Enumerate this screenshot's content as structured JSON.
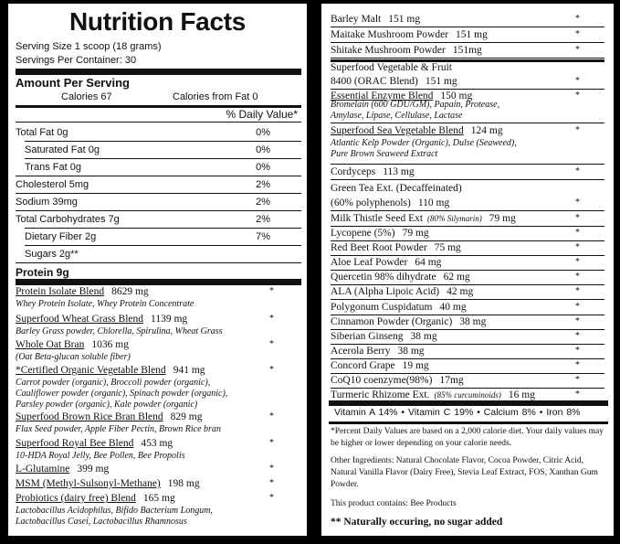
{
  "header": {
    "title": "Nutrition Facts",
    "serving_size": "Serving Size 1 scoop (18 grams)",
    "servings_per_container": "Servings Per Container: 30",
    "amount_per_serving": "Amount Per Serving",
    "calories": "Calories  67",
    "calories_from_fat": "Calories from Fat  0",
    "daily_value_header": "% Daily Value*"
  },
  "nutrients": [
    {
      "name": "Total Fat  0g",
      "pct": "0%"
    },
    {
      "name": "Saturated Fat  0g",
      "pct": "0%"
    },
    {
      "name": "Trans Fat  0g",
      "pct": "0%"
    },
    {
      "name": "Cholesterol  5mg",
      "pct": "2%"
    },
    {
      "name": "Sodium  39mg",
      "pct": "2%"
    },
    {
      "name": "Total Carbohydrates  7g",
      "pct": "2%"
    },
    {
      "name": "Dietary Fiber  2g",
      "pct": "7%"
    },
    {
      "name": "Sugars  2g**",
      "pct": ""
    },
    {
      "name": "Protein  9g",
      "pct": ""
    }
  ],
  "left_blends": [
    {
      "name": "Protein Isolate Blend",
      "amount": "8629 mg",
      "star": "*",
      "desc": [
        "Whey Protein Isolate, Whey Protein Concentrate"
      ]
    },
    {
      "name": "Superfood Wheat Grass Blend",
      "amount": "1139 mg",
      "star": "*",
      "desc": [
        "Barley Grass powder, Chlorella, Spirulina, Wheat Grass"
      ]
    },
    {
      "name": "Whole Oat Bran",
      "amount": "1036 mg",
      "star": "*",
      "desc": [
        "(Oat Beta-glucan soluble fiber)"
      ]
    },
    {
      "name": "*Certified Organic Vegetable Blend",
      "amount": "941 mg",
      "star": "*",
      "desc": [
        "Carrot powder (organic), Broccoli powder (organic),",
        "Cauliflower powder (organic), Spinach powder (organic),",
        "Parsley powder (organic), Kale powder (organic)"
      ]
    },
    {
      "name": "Superfood Brown Rice Bran Blend",
      "amount": "829 mg",
      "star": "*",
      "desc": [
        "Flax Seed powder, Apple Fiber Pectin, Brown Rice bran"
      ]
    },
    {
      "name": "Superfood Royal Bee Blend",
      "amount": "453 mg",
      "star": "*",
      "desc": [
        "10-HDA Royal Jelly, Bee Pollen, Bee Propolis"
      ]
    },
    {
      "name": "L-Glutamine",
      "amount": "399 mg",
      "star": "*",
      "desc": []
    },
    {
      "name": "MSM (Methyl-Sulsonyl-Methane)",
      "amount": "198 mg",
      "star": "*",
      "desc": []
    },
    {
      "name": "Probiotics (dairy free) Blend",
      "amount": "165 mg",
      "star": "*",
      "desc": [
        "Lactobacillus Acidophilus, Bifido Bacterium Longum,",
        "Lactobacillus Casei, Lactobacillus Rhamnosus"
      ]
    }
  ],
  "right_items": [
    {
      "name": "Barley Malt",
      "amount": "151 mg",
      "star": "*"
    },
    {
      "name": "Maitake Mushroom Powder",
      "amount": "151 mg",
      "star": "*"
    },
    {
      "name": "Shitake Mushroom Powder",
      "amount": "151mg",
      "star": "*"
    },
    {
      "name": "Superfood Vegetable & Fruit",
      "amount": "",
      "star": ""
    },
    {
      "name": "8400 (ORAC Blend)",
      "amount": "151 mg",
      "star": "*"
    },
    {
      "name": "Essential Enzyme Blend",
      "amount": "150 mg",
      "star": "*"
    },
    {
      "name": "Superfood Sea Vegetable Blend",
      "amount": "124 mg",
      "star": "*"
    },
    {
      "name": "Cordyceps",
      "amount": "113 mg",
      "star": "*"
    },
    {
      "name": "Green Tea Ext. (Decaffeinated)",
      "amount": "",
      "star": ""
    },
    {
      "name": "(60% polyphenols)",
      "amount": "110 mg",
      "star": "*"
    },
    {
      "name": "Milk Thistle Seed Ext",
      "sub": "(80% Silymarin)",
      "amount": "79 mg",
      "star": "*"
    },
    {
      "name": "Lycopene (5%)",
      "amount": "79 mg",
      "star": "*"
    },
    {
      "name": "Red Beet Root Powder",
      "amount": "75 mg",
      "star": "*"
    },
    {
      "name": "Aloe Leaf Powder",
      "amount": "64 mg",
      "star": "*"
    },
    {
      "name": "Quercetin 98% dihydrate",
      "amount": "62 mg",
      "star": "*"
    },
    {
      "name": "ALA (Alpha Lipoic Acid)",
      "amount": "42 mg",
      "star": "*"
    },
    {
      "name": "Polygonum Cuspidatum",
      "amount": "40 mg",
      "star": "*"
    },
    {
      "name": "Cinnamon Powder (Organic)",
      "amount": "38 mg",
      "star": "*"
    },
    {
      "name": "Siberian Ginseng",
      "amount": "38 mg",
      "star": "*"
    },
    {
      "name": "Acerola Berry",
      "amount": "38 mg",
      "star": "*"
    },
    {
      "name": "Concord Grape",
      "amount": "19 mg",
      "star": "*"
    },
    {
      "name": "CoQ10 coenzyme(98%)",
      "amount": "17mg",
      "star": "*"
    },
    {
      "name": "Turmeric Rhizome Ext.",
      "sub": "(85% curcuminoids)",
      "amount": "16 mg",
      "star": "*"
    }
  ],
  "enzyme_desc": [
    "Bromelain (600 GDU/GM), Papain, Protease,",
    "Amylase, Lipase, Cellulase, Lactase"
  ],
  "sea_desc": [
    "Atlantic Kelp Powder (Organic), Dulse (Seaweed),",
    "Pure Brown Seaweed Extract"
  ],
  "vitamins": "Vitamin A  14%  •  Vitamin C  19%  •  Calcium  8%  •  Iron 8%",
  "footnote": "*Percent Daily Values are based on a 2,000 calorie diet. Your daily values may be higher or lower depending on your calorie needs.",
  "other_ingredients": "Other Ingredients: Natural Chocolate Flavor, Cocoa Powder, Citric Acid, Natural Vanilla Flavor (Dairy Free), Stevia Leaf Extract, FOS, Xanthan Gum Powder.",
  "contains": "This product contains: Bee Products",
  "sugar_note": "** Naturally occuring, no sugar added"
}
